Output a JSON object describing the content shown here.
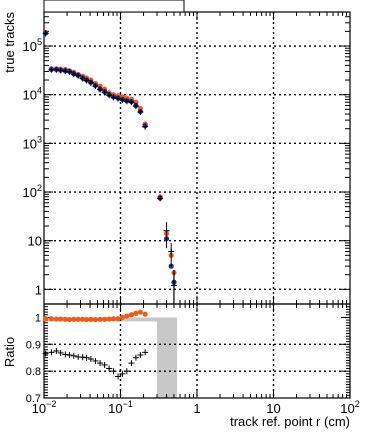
{
  "chart_data": [
    {
      "type": "scatter",
      "panel": "main",
      "ylabel": "true tracks",
      "yscale": "log",
      "xscale": "log",
      "xlim": [
        0.01,
        100
      ],
      "ylim": [
        0.5,
        500000
      ],
      "grid": true,
      "y_ticks": [
        {
          "base": "10",
          "exp": "5",
          "value": 100000
        },
        {
          "base": "10",
          "exp": "4",
          "value": 10000
        },
        {
          "base": "10",
          "exp": "3",
          "value": 1000
        },
        {
          "base": "10",
          "exp": "2",
          "value": 100
        },
        {
          "base": "10",
          "exp": "",
          "value": 10
        },
        {
          "base": "1",
          "exp": "",
          "value": 1
        }
      ],
      "series": [
        {
          "color": "#f05a1a",
          "marker": "circle",
          "x": [
            0.0105,
            0.0125,
            0.0145,
            0.0165,
            0.019,
            0.0215,
            0.0245,
            0.028,
            0.032,
            0.036,
            0.041,
            0.047,
            0.054,
            0.062,
            0.071,
            0.081,
            0.093,
            0.106,
            0.121,
            0.139,
            0.159,
            0.182,
            0.21,
            0.33,
            0.4,
            0.46,
            0.5
          ],
          "y": [
            190000,
            34000,
            34000,
            33500,
            33000,
            31000,
            29000,
            26000,
            24000,
            22000,
            20000,
            17000,
            15000,
            13000,
            11000,
            10000,
            9500,
            9000,
            8500,
            8000,
            7000,
            5200,
            2500,
            80,
            14,
            5,
            2.2
          ]
        },
        {
          "color": "#1a2b8c",
          "marker": "circle",
          "x": [
            0.0105,
            0.0125,
            0.0145,
            0.0165,
            0.019,
            0.0215,
            0.0245,
            0.028,
            0.032,
            0.036,
            0.041,
            0.047,
            0.054,
            0.062,
            0.071,
            0.081,
            0.093,
            0.106,
            0.121,
            0.139,
            0.159,
            0.182,
            0.21,
            0.33,
            0.4,
            0.46,
            0.5
          ],
          "y": [
            185000,
            33000,
            33000,
            32000,
            31000,
            30000,
            27000,
            25000,
            22000,
            20000,
            18000,
            15500,
            13000,
            11500,
            10000,
            9000,
            8500,
            8000,
            7500,
            7200,
            6000,
            4500,
            2300,
            75,
            11,
            3,
            1.4
          ]
        },
        {
          "color": "#000000",
          "marker": "cross",
          "x": [
            0.0105,
            0.0125,
            0.0145,
            0.0165,
            0.019,
            0.0215,
            0.0245,
            0.028,
            0.032,
            0.036,
            0.041,
            0.047,
            0.054,
            0.062,
            0.071,
            0.081,
            0.093,
            0.106,
            0.121,
            0.139,
            0.159,
            0.182,
            0.21,
            0.33,
            0.4,
            0.46,
            0.5
          ],
          "y": [
            180000,
            32500,
            32500,
            31500,
            30500,
            29500,
            26500,
            24500,
            21500,
            19500,
            17500,
            15000,
            12800,
            11200,
            9800,
            8800,
            8300,
            7800,
            7300,
            7000,
            5800,
            4400,
            2200,
            74,
            16,
            6,
            1.2
          ]
        }
      ]
    },
    {
      "type": "scatter",
      "panel": "ratio",
      "xlabel": "track ref. point r (cm)",
      "ylabel": "Ratio",
      "xscale": "log",
      "xlim": [
        0.01,
        100
      ],
      "ylim": [
        0.7,
        1.05
      ],
      "grid": true,
      "y_ticks": [
        {
          "label": "1",
          "value": 1.0
        },
        {
          "label": "0.9",
          "value": 0.9
        },
        {
          "label": "0.8",
          "value": 0.8
        },
        {
          "label": "0.7",
          "value": 0.7
        }
      ],
      "x_ticks": [
        {
          "base": "10",
          "exp": "−2",
          "value": 0.01
        },
        {
          "base": "10",
          "exp": "−1",
          "value": 0.1
        },
        {
          "base": "1",
          "exp": "",
          "value": 1
        },
        {
          "base": "10",
          "exp": "",
          "value": 10
        },
        {
          "base": "10",
          "exp": "2",
          "value": 100
        }
      ],
      "band": {
        "color": "#c8c8c8",
        "x": [
          0.3,
          0.55
        ],
        "y": [
          0.7,
          1.0
        ]
      },
      "band_low": {
        "x": [
          0.01,
          0.3
        ],
        "y": [
          0.985,
          1.0
        ]
      },
      "series": [
        {
          "color": "#f05a1a",
          "marker": "circle",
          "x": [
            0.0105,
            0.0125,
            0.0145,
            0.0165,
            0.019,
            0.0215,
            0.0245,
            0.028,
            0.032,
            0.036,
            0.041,
            0.047,
            0.054,
            0.062,
            0.071,
            0.081,
            0.093,
            0.106,
            0.121,
            0.139,
            0.159,
            0.182,
            0.21
          ],
          "y": [
            0.995,
            0.995,
            0.994,
            0.994,
            0.993,
            0.992,
            0.993,
            0.993,
            0.993,
            0.992,
            0.993,
            0.992,
            0.993,
            0.993,
            0.994,
            0.995,
            0.995,
            1.0,
            1.005,
            1.01,
            1.015,
            1.02,
            1.012
          ]
        },
        {
          "color": "#000000",
          "marker": "cross",
          "x": [
            0.0105,
            0.0125,
            0.0145,
            0.0165,
            0.019,
            0.0215,
            0.0245,
            0.028,
            0.032,
            0.036,
            0.041,
            0.047,
            0.054,
            0.062,
            0.071,
            0.081,
            0.093,
            0.106,
            0.121,
            0.139,
            0.159,
            0.182,
            0.21
          ],
          "y": [
            0.865,
            0.87,
            0.875,
            0.868,
            0.862,
            0.86,
            0.857,
            0.853,
            0.852,
            0.85,
            0.845,
            0.838,
            0.83,
            0.823,
            0.81,
            0.8,
            0.78,
            0.79,
            0.8,
            0.83,
            0.85,
            0.86,
            0.87
          ]
        }
      ]
    }
  ]
}
